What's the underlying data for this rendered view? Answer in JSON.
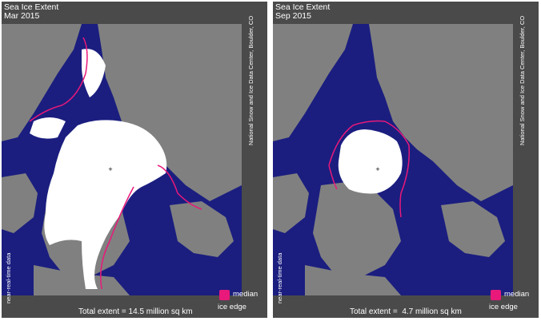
{
  "colors": {
    "ocean": "#1b1e7f",
    "land": "#808080",
    "ice": "#ffffff",
    "median_edge": "#e8197a",
    "frame": "#4a4a4a",
    "text": "#ffffff"
  },
  "panels": [
    {
      "title": "Sea Ice Extent",
      "date": "Mar 2015",
      "credit": "National Snow and Ice Data Center, Boulder, CO",
      "side_note": "near-real-time data",
      "legend_label": "median",
      "legend_label2": "ice edge",
      "total": "Total extent = 14.5 million sq km"
    },
    {
      "title": "Sea Ice Extent",
      "date": "Sep 2015",
      "credit": "National Snow and Ice Data Center, Boulder, CO",
      "side_note": "near-real-time data",
      "legend_label": "median",
      "legend_label2": "ice edge",
      "total": "Total extent =  4.7 million sq km"
    }
  ]
}
